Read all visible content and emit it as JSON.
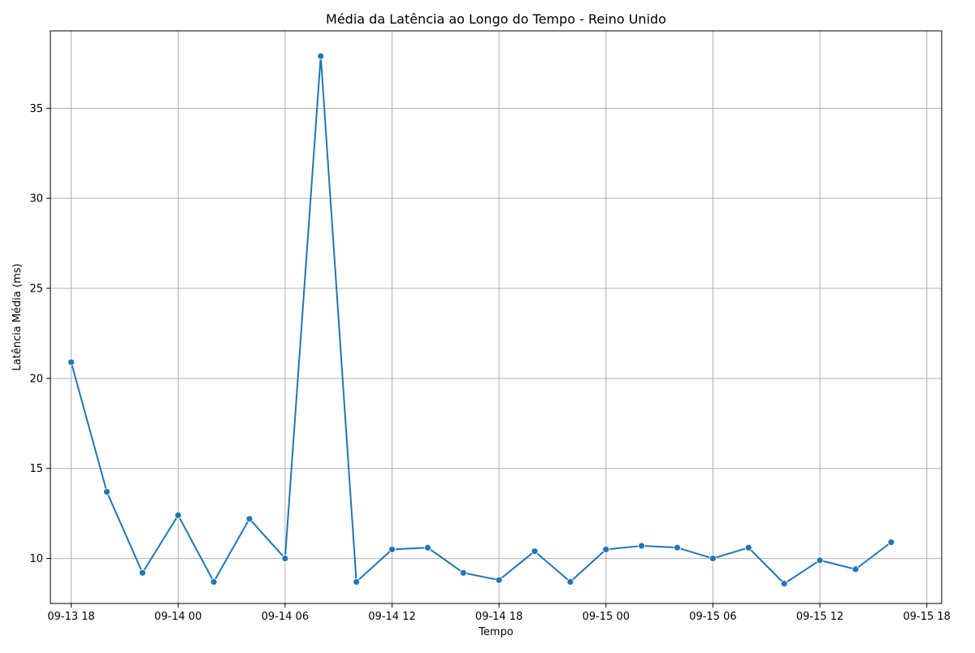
{
  "chart_data": {
    "type": "line",
    "title": "Média da Latência ao Longo do Tempo - Reino Unido",
    "xlabel": "Tempo",
    "ylabel": "Latência Média (ms)",
    "x_type": "datetime",
    "xlim": [
      "2023-09-13 16:50",
      "2023-09-15 18:50"
    ],
    "ylim": [
      7.5,
      39.3
    ],
    "x_ticks": [
      {
        "value": "2023-09-13 18:00",
        "label": "09-13 18"
      },
      {
        "value": "2023-09-14 00:00",
        "label": "09-14 00"
      },
      {
        "value": "2023-09-14 06:00",
        "label": "09-14 06"
      },
      {
        "value": "2023-09-14 12:00",
        "label": "09-14 12"
      },
      {
        "value": "2023-09-14 18:00",
        "label": "09-14 18"
      },
      {
        "value": "2023-09-15 00:00",
        "label": "09-15 00"
      },
      {
        "value": "2023-09-15 06:00",
        "label": "09-15 06"
      },
      {
        "value": "2023-09-15 12:00",
        "label": "09-15 12"
      },
      {
        "value": "2023-09-15 18:00",
        "label": "09-15 18"
      }
    ],
    "y_ticks": [
      10,
      15,
      20,
      25,
      30,
      35
    ],
    "grid": true,
    "legend": "none",
    "series": [
      {
        "color": "#1f77b4",
        "marker": "circle",
        "x": [
          "2023-09-13 18:00",
          "2023-09-13 20:00",
          "2023-09-13 22:00",
          "2023-09-14 00:00",
          "2023-09-14 02:00",
          "2023-09-14 04:00",
          "2023-09-14 06:00",
          "2023-09-14 08:00",
          "2023-09-14 10:00",
          "2023-09-14 12:00",
          "2023-09-14 14:00",
          "2023-09-14 16:00",
          "2023-09-14 18:00",
          "2023-09-14 20:00",
          "2023-09-14 22:00",
          "2023-09-15 00:00",
          "2023-09-15 02:00",
          "2023-09-15 04:00",
          "2023-09-15 06:00",
          "2023-09-15 08:00",
          "2023-09-15 10:00",
          "2023-09-15 12:00",
          "2023-09-15 14:00",
          "2023-09-15 16:00"
        ],
        "y": [
          20.9,
          13.7,
          9.2,
          12.4,
          8.7,
          12.2,
          10.0,
          37.9,
          8.7,
          10.5,
          10.6,
          9.2,
          8.8,
          10.4,
          8.7,
          10.5,
          10.7,
          10.6,
          10.0,
          10.6,
          8.6,
          9.9,
          9.4,
          10.9
        ]
      }
    ]
  }
}
